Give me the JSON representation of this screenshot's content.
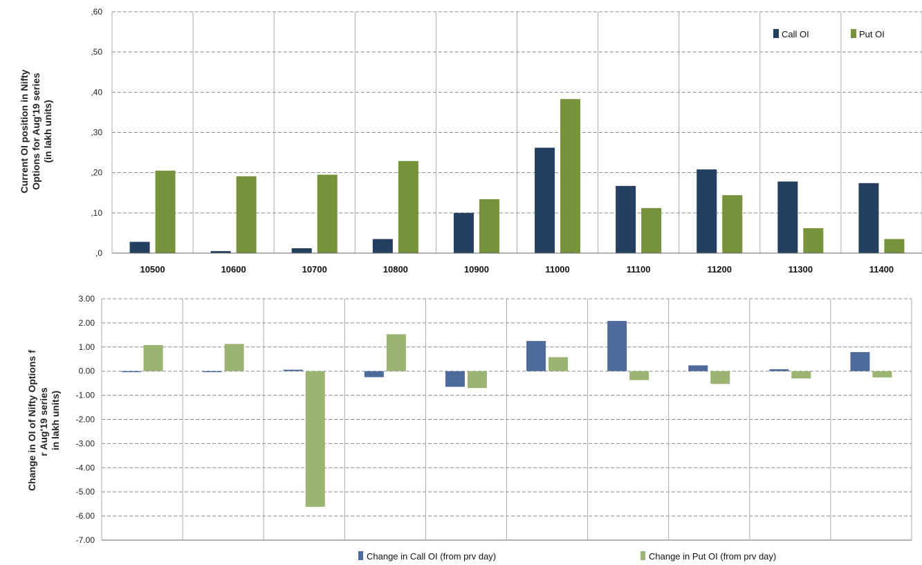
{
  "chart_data": [
    {
      "type": "bar",
      "title": "",
      "ylabel": "Current OI position in Nifty Options for Aug'19 series (in lakh units)",
      "xlabel": "",
      "categories": [
        "10500",
        "10600",
        "10700",
        "10800",
        "10900",
        "11000",
        "11100",
        "11200",
        "11300",
        "11400"
      ],
      "y_tick_labels": [
        ",60",
        ",50",
        ",40",
        ",30",
        ",20",
        ",10",
        ",0"
      ],
      "ylim": [
        0,
        0.6
      ],
      "grid": true,
      "legend_position": "top-right",
      "series": [
        {
          "name": "Call OI",
          "color": "#243f60",
          "values": [
            0.028,
            0.005,
            0.012,
            0.035,
            0.1,
            0.262,
            0.167,
            0.208,
            0.178,
            0.174
          ]
        },
        {
          "name": "Put OI",
          "color": "#76933c",
          "values": [
            0.205,
            0.191,
            0.195,
            0.229,
            0.134,
            0.383,
            0.112,
            0.144,
            0.062,
            0.035
          ]
        }
      ]
    },
    {
      "type": "bar",
      "title": "",
      "ylabel": "Change in OI of Nifty Options for Aug'19 series (in lakh units)",
      "xlabel": "",
      "categories": [
        "10500",
        "10600",
        "10700",
        "10800",
        "10900",
        "11000",
        "11100",
        "11200",
        "11300",
        "11400"
      ],
      "y_tick_labels": [
        "3.00",
        "2.00",
        "1.00",
        "0.00",
        "-1.00",
        "-2.00",
        "-3.00",
        "-4.00",
        "-5.00",
        "-6.00",
        "-7.00"
      ],
      "ylim": [
        -7,
        3
      ],
      "grid": true,
      "legend_position": "bottom",
      "series": [
        {
          "name": "Change in Call OI (from prv day)",
          "color": "#4f6b9c",
          "values": [
            -0.03,
            -0.03,
            0.06,
            -0.25,
            -0.65,
            1.25,
            2.08,
            0.24,
            0.08,
            0.79
          ]
        },
        {
          "name": "Change in Put OI (from prv day)",
          "color": "#9bb471",
          "values": [
            1.08,
            1.13,
            -5.62,
            1.53,
            -0.7,
            0.58,
            -0.37,
            -0.53,
            -0.3,
            -0.26
          ]
        }
      ]
    }
  ]
}
